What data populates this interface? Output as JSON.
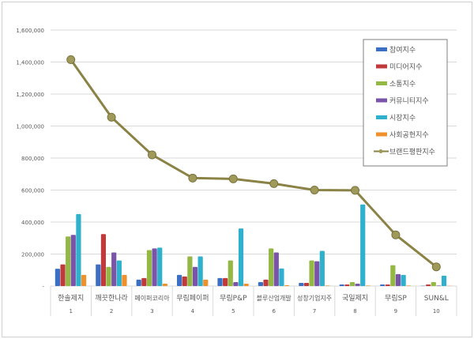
{
  "chart_data": {
    "type": "bar+line",
    "categories": [
      "한솔제지",
      "깨끗한나라",
      "페이퍼코리아",
      "무림페이퍼",
      "무림P&P",
      "블루산업개발",
      "성창기업지주",
      "국일제지",
      "무림SP",
      "SUN&L"
    ],
    "ranks": [
      "1",
      "2",
      "3",
      "4",
      "5",
      "6",
      "7",
      "8",
      "9",
      "10"
    ],
    "ylim": [
      0,
      1600000
    ],
    "yticks": [
      "-",
      "200,000",
      "400,000",
      "600,000",
      "800,000",
      "1,000,000",
      "1,200,000",
      "1,400,000",
      "1,600,000"
    ],
    "grid": true,
    "legend_position": "top-right",
    "series": [
      {
        "name": "참여지수",
        "type": "bar",
        "color": "#3a6fc4",
        "values": [
          108000,
          135000,
          40000,
          70000,
          50000,
          25000,
          20000,
          10000,
          10000,
          2000
        ]
      },
      {
        "name": "미디어지수",
        "type": "bar",
        "color": "#c0393b",
        "values": [
          135000,
          325000,
          50000,
          60000,
          50000,
          40000,
          20000,
          10000,
          10000,
          10000
        ]
      },
      {
        "name": "소통지수",
        "type": "bar",
        "color": "#93b843",
        "values": [
          310000,
          120000,
          225000,
          185000,
          160000,
          235000,
          160000,
          25000,
          130000,
          25000
        ]
      },
      {
        "name": "커뮤니티지수",
        "type": "bar",
        "color": "#7a54a8",
        "values": [
          320000,
          210000,
          235000,
          120000,
          25000,
          210000,
          155000,
          15000,
          75000,
          3000
        ]
      },
      {
        "name": "시장지수",
        "type": "bar",
        "color": "#2fb0cc",
        "values": [
          450000,
          160000,
          240000,
          185000,
          360000,
          110000,
          220000,
          510000,
          70000,
          65000
        ]
      },
      {
        "name": "사회공헌지수",
        "type": "bar",
        "color": "#f0902a",
        "values": [
          70000,
          70000,
          15000,
          40000,
          15000,
          5000,
          3000,
          3000,
          3000,
          1000
        ]
      },
      {
        "name": "브랜드평판지수",
        "type": "line",
        "color": "#8b8246",
        "values": [
          1415000,
          1055000,
          820000,
          675000,
          670000,
          640000,
          600000,
          598000,
          320000,
          120000
        ]
      }
    ]
  }
}
